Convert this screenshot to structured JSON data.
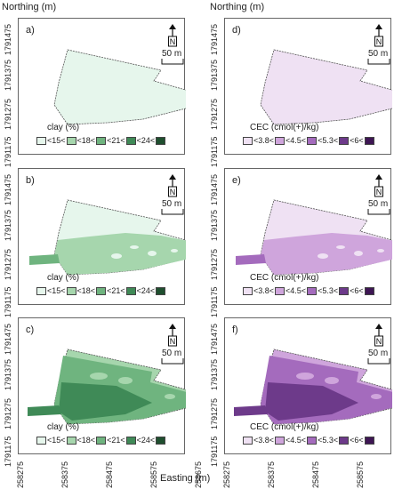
{
  "axes": {
    "y_title": "Northing (m)",
    "x_title": "Easting (m)",
    "y_ticks": [
      "1791475",
      "1791375",
      "1791275",
      "1791175"
    ],
    "x_ticks": [
      "258275",
      "258375",
      "258475",
      "258575",
      "258675"
    ]
  },
  "scale_bar": "50 m",
  "north_label": "N",
  "panels": [
    {
      "label": "a)",
      "legend_title": "clay (%)",
      "scheme": "green",
      "level": 0
    },
    {
      "label": "b)",
      "legend_title": "clay (%)",
      "scheme": "green",
      "level": 1
    },
    {
      "label": "c)",
      "legend_title": "clay (%)",
      "scheme": "green",
      "level": 2
    },
    {
      "label": "d)",
      "legend_title": "CEC (cmol(+)/kg)",
      "scheme": "purple",
      "level": 0
    },
    {
      "label": "e)",
      "legend_title": "CEC (cmol(+)/kg)",
      "scheme": "purple",
      "level": 1
    },
    {
      "label": "f)",
      "legend_title": "CEC (cmol(+)/kg)",
      "scheme": "purple",
      "level": 2
    }
  ],
  "legends": {
    "green": {
      "breaks": [
        "<15<",
        "<18<",
        "<21<",
        "<24<"
      ],
      "colors": [
        "#e6f6ec",
        "#a6d6ad",
        "#6fb47f",
        "#3f8a57",
        "#1f4f2f"
      ]
    },
    "purple": {
      "breaks": [
        "<3.8<",
        "<4.5<",
        "<5.3<",
        "<6<"
      ],
      "colors": [
        "#efe1f3",
        "#cfa5dc",
        "#a46bbd",
        "#6d3a8a",
        "#3e1654"
      ]
    }
  }
}
